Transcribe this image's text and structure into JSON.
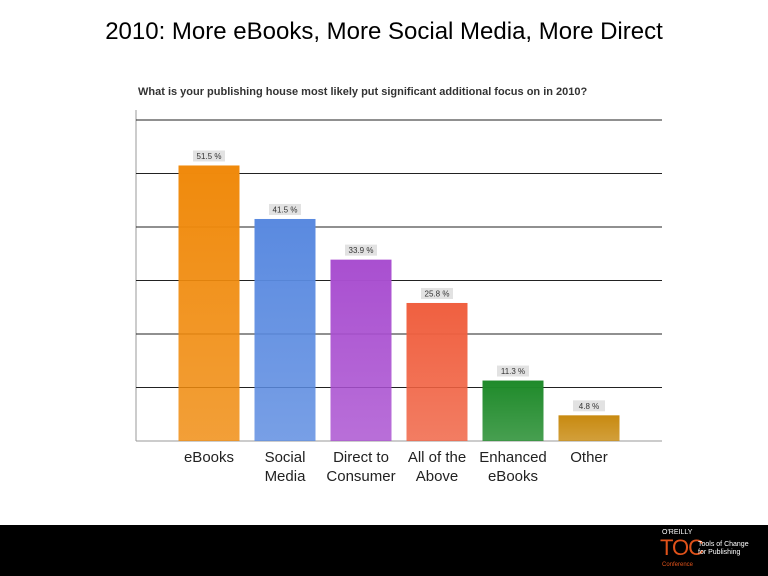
{
  "slide": {
    "title": "2010: More eBooks, More Social Media, More Direct"
  },
  "chart_data": {
    "type": "bar",
    "title": "What is your publishing house most likely put significant additional focus on in 2010?",
    "categories": [
      [
        "eBooks"
      ],
      [
        "Social",
        "Media"
      ],
      [
        "Direct to",
        "Consumer"
      ],
      [
        "All of the",
        "Above"
      ],
      [
        "Enhanced",
        "eBooks"
      ],
      [
        "Other"
      ]
    ],
    "values": [
      51.5,
      41.5,
      33.9,
      25.8,
      11.3,
      4.8
    ],
    "data_labels": [
      "51.5 %",
      "41.5 %",
      "33.9 %",
      "25.8 %",
      "11.3 %",
      "4.8 %"
    ],
    "colors": [
      "#f08a0c",
      "#5a8ae0",
      "#a94fd0",
      "#f06040",
      "#1f8a2a",
      "#c88a10"
    ],
    "ylim": [
      0,
      60
    ],
    "grid": true,
    "legend": "none"
  },
  "footer": {
    "logo": {
      "oreilly": "O'REILLY",
      "toc": "TOC",
      "tagline": "Tools of Change for Publishing",
      "conference": "Conference"
    }
  }
}
